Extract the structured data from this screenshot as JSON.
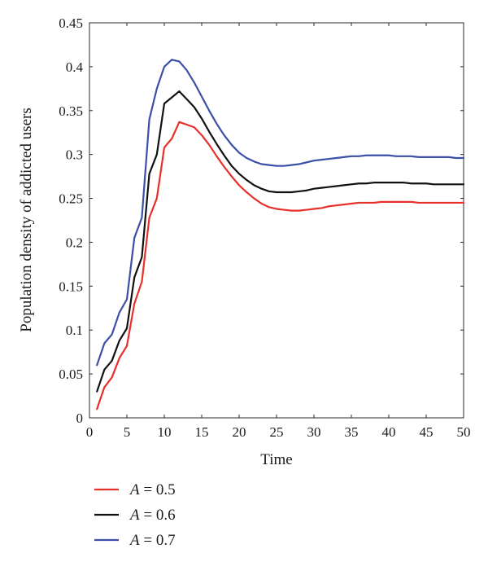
{
  "chart_data": {
    "type": "line",
    "title": "",
    "xlabel": "Time",
    "ylabel": "Population density of addicted users",
    "xlim": [
      0,
      50
    ],
    "ylim": [
      0,
      0.45
    ],
    "x_ticks": [
      0,
      5,
      10,
      15,
      20,
      25,
      30,
      35,
      40,
      45,
      50
    ],
    "x_tick_labels": [
      "0",
      "5",
      "10",
      "15",
      "20",
      "25",
      "30",
      "35",
      "40",
      "45",
      "50"
    ],
    "y_ticks": [
      0,
      0.05,
      0.1,
      0.15,
      0.2,
      0.25,
      0.3,
      0.35,
      0.4,
      0.45
    ],
    "y_tick_labels": [
      "0",
      "0.05",
      "0.1",
      "0.15",
      "0.2",
      "0.25",
      "0.3",
      "0.35",
      "0.4",
      "0.45"
    ],
    "grid": false,
    "legend_position": "bottom-left",
    "series": [
      {
        "name": "A = 0.5",
        "legend_var": "A",
        "legend_value": "= 0.5",
        "color": "#e8302a",
        "x": [
          1,
          2,
          3,
          4,
          5,
          6,
          7,
          8,
          9,
          10,
          11,
          12,
          13,
          14,
          15,
          16,
          17,
          18,
          19,
          20,
          21,
          22,
          23,
          24,
          25,
          26,
          27,
          28,
          29,
          30,
          31,
          32,
          33,
          34,
          35,
          36,
          37,
          38,
          39,
          40,
          41,
          42,
          43,
          44,
          45,
          46,
          47,
          48,
          49,
          50
        ],
        "y": [
          0.01,
          0.035,
          0.046,
          0.068,
          0.082,
          0.13,
          0.155,
          0.228,
          0.25,
          0.308,
          0.318,
          0.337,
          0.334,
          0.331,
          0.322,
          0.311,
          0.298,
          0.286,
          0.275,
          0.265,
          0.257,
          0.25,
          0.244,
          0.24,
          0.238,
          0.237,
          0.236,
          0.236,
          0.237,
          0.238,
          0.239,
          0.241,
          0.242,
          0.243,
          0.244,
          0.245,
          0.245,
          0.245,
          0.246,
          0.246,
          0.246,
          0.246,
          0.246,
          0.245,
          0.245,
          0.245,
          0.245,
          0.245,
          0.245,
          0.245
        ]
      },
      {
        "name": "A = 0.6",
        "legend_var": "A",
        "legend_value": "= 0.6",
        "color": "#111111",
        "x": [
          1,
          2,
          3,
          4,
          5,
          6,
          7,
          8,
          9,
          10,
          11,
          12,
          13,
          14,
          15,
          16,
          17,
          18,
          19,
          20,
          21,
          22,
          23,
          24,
          25,
          26,
          27,
          28,
          29,
          30,
          31,
          32,
          33,
          34,
          35,
          36,
          37,
          38,
          39,
          40,
          41,
          42,
          43,
          44,
          45,
          46,
          47,
          48,
          49,
          50
        ],
        "y": [
          0.03,
          0.055,
          0.065,
          0.088,
          0.102,
          0.16,
          0.183,
          0.278,
          0.3,
          0.358,
          0.365,
          0.372,
          0.363,
          0.354,
          0.341,
          0.326,
          0.312,
          0.299,
          0.287,
          0.278,
          0.271,
          0.265,
          0.261,
          0.258,
          0.257,
          0.257,
          0.257,
          0.258,
          0.259,
          0.261,
          0.262,
          0.263,
          0.264,
          0.265,
          0.266,
          0.267,
          0.267,
          0.268,
          0.268,
          0.268,
          0.268,
          0.268,
          0.267,
          0.267,
          0.267,
          0.266,
          0.266,
          0.266,
          0.266,
          0.266
        ]
      },
      {
        "name": "A = 0.7",
        "legend_var": "A",
        "legend_value": "= 0.7",
        "color": "#3b4fa8",
        "x": [
          1,
          2,
          3,
          4,
          5,
          6,
          7,
          8,
          9,
          10,
          11,
          12,
          13,
          14,
          15,
          16,
          17,
          18,
          19,
          20,
          21,
          22,
          23,
          24,
          25,
          26,
          27,
          28,
          29,
          30,
          31,
          32,
          33,
          34,
          35,
          36,
          37,
          38,
          39,
          40,
          41,
          42,
          43,
          44,
          45,
          46,
          47,
          48,
          49,
          50
        ],
        "y": [
          0.06,
          0.085,
          0.095,
          0.12,
          0.135,
          0.205,
          0.228,
          0.34,
          0.375,
          0.4,
          0.408,
          0.406,
          0.396,
          0.382,
          0.366,
          0.35,
          0.335,
          0.322,
          0.311,
          0.302,
          0.296,
          0.292,
          0.289,
          0.288,
          0.287,
          0.287,
          0.288,
          0.289,
          0.291,
          0.293,
          0.294,
          0.295,
          0.296,
          0.297,
          0.298,
          0.298,
          0.299,
          0.299,
          0.299,
          0.299,
          0.298,
          0.298,
          0.298,
          0.297,
          0.297,
          0.297,
          0.297,
          0.297,
          0.296,
          0.296
        ]
      }
    ]
  }
}
